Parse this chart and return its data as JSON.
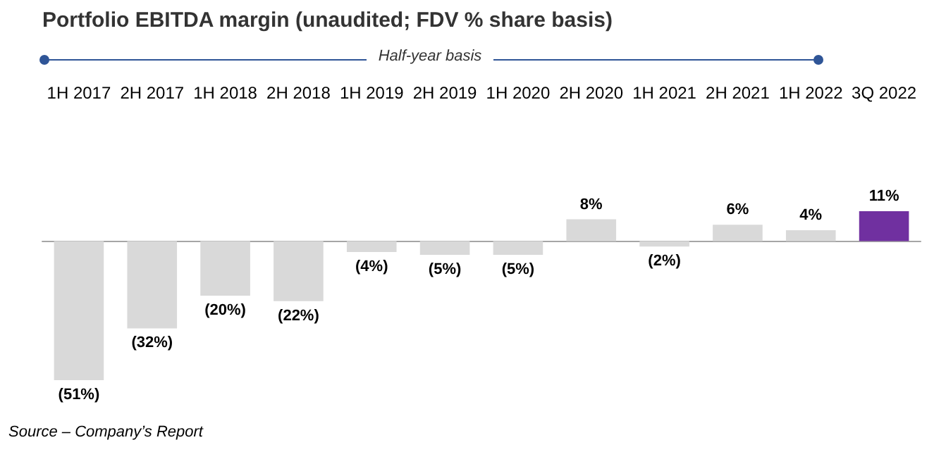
{
  "chart_data": {
    "type": "bar",
    "title": "Portfolio EBITDA margin (unaudited; FDV % share basis)",
    "annotations": [
      "Half-year basis",
      "Source – Company’s Report"
    ],
    "categories": [
      "1H 2017",
      "2H 2017",
      "1H 2018",
      "2H 2018",
      "1H 2019",
      "2H 2019",
      "1H 2020",
      "2H 2020",
      "1H 2021",
      "2H 2021",
      "1H 2022",
      "3Q 2022"
    ],
    "values": [
      -51,
      -32,
      -20,
      -22,
      -4,
      -5,
      -5,
      8,
      -2,
      6,
      4,
      11
    ],
    "colors": [
      "#d9d9d9",
      "#d9d9d9",
      "#d9d9d9",
      "#d9d9d9",
      "#d9d9d9",
      "#d9d9d9",
      "#d9d9d9",
      "#d9d9d9",
      "#d9d9d9",
      "#d9d9d9",
      "#d9d9d9",
      "#7030a0"
    ],
    "value_labels": [
      "(51%)",
      "(32%)",
      "(20%)",
      "(22%)",
      "(4%)",
      "(5%)",
      "(5%)",
      "8%",
      "(2%)",
      "6%",
      "4%",
      "11%"
    ]
  }
}
